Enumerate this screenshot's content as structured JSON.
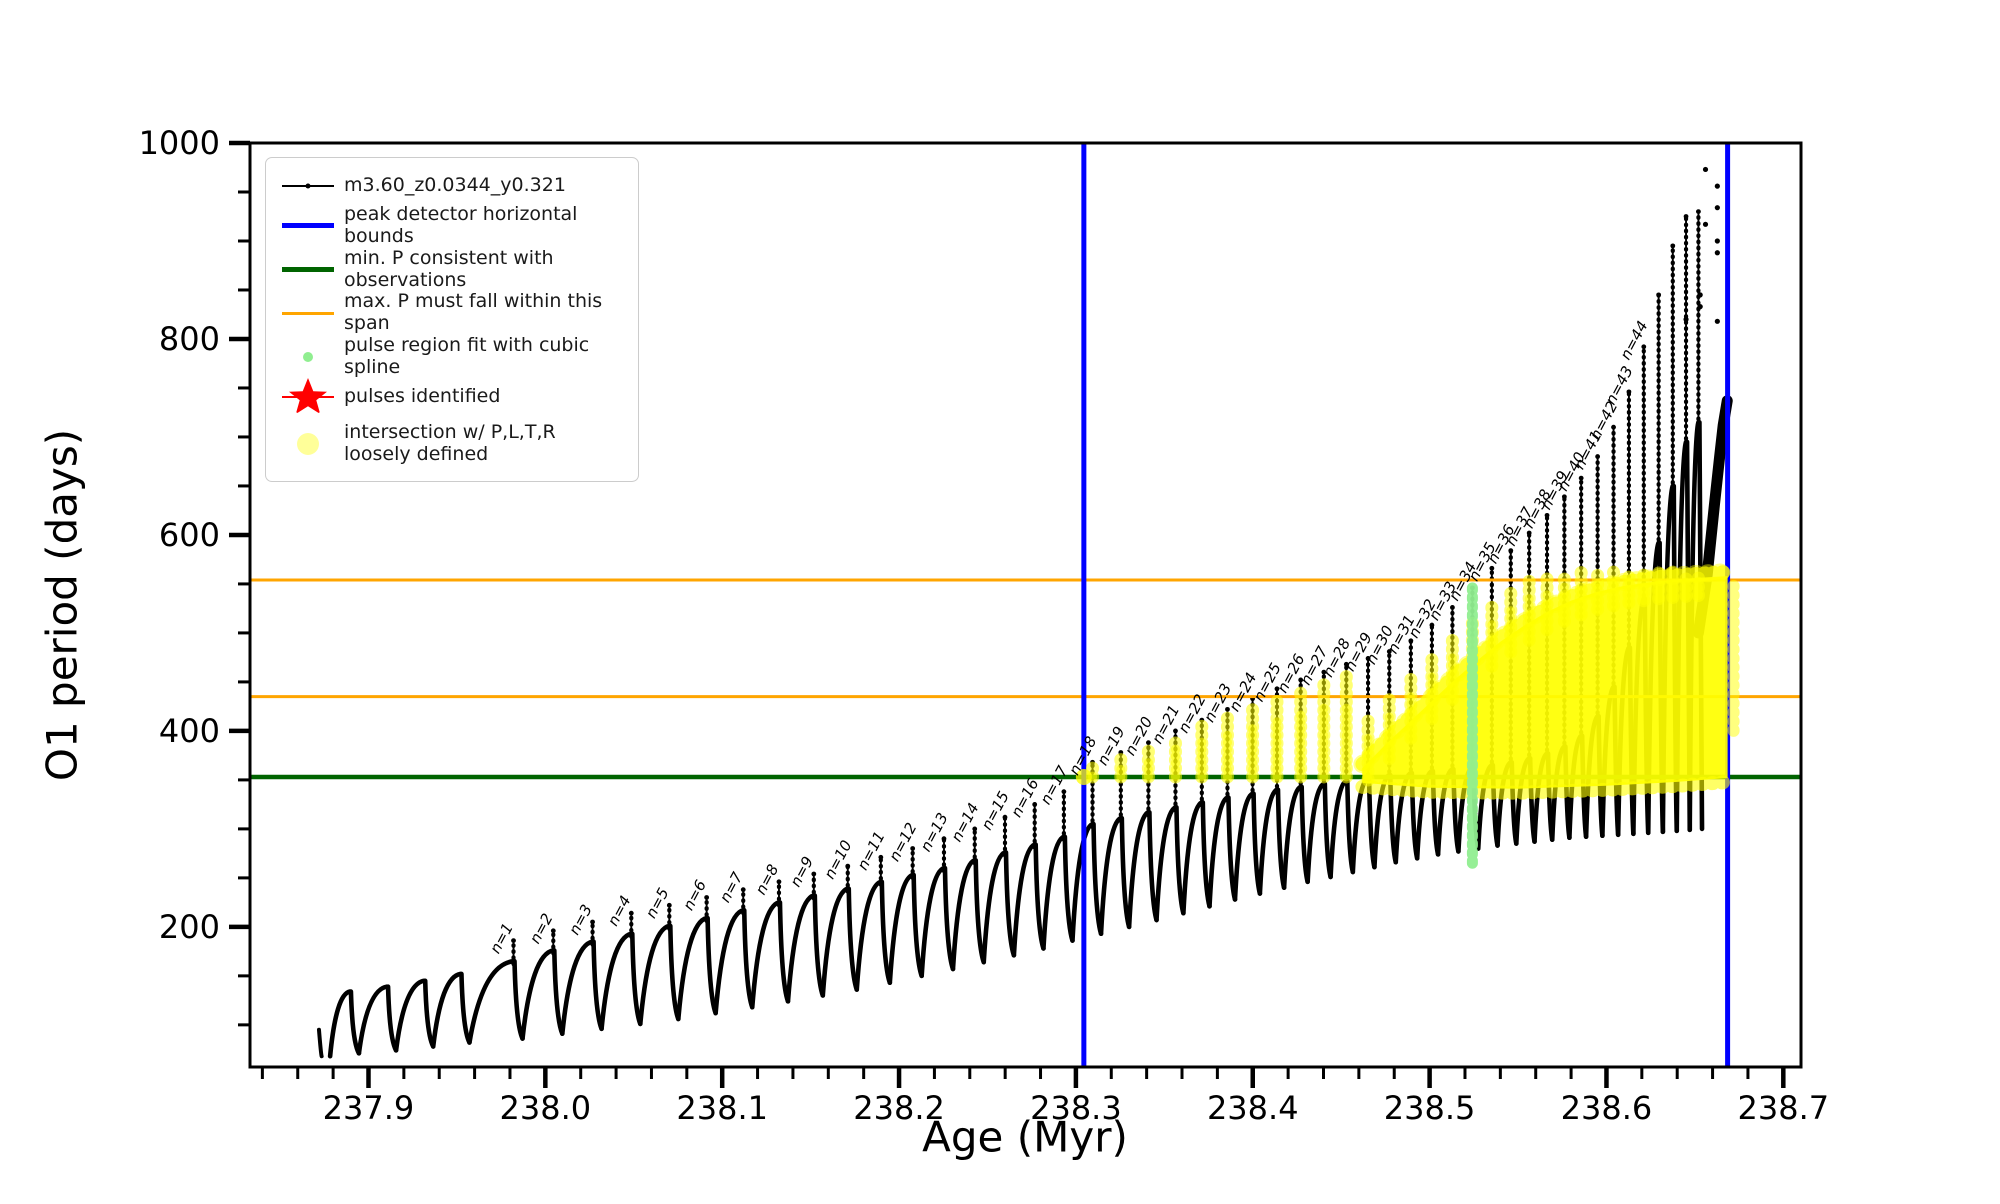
{
  "figure": {
    "background": "#ffffff",
    "xlabel": "Age (Myr)",
    "ylabel": "O1 period (days)"
  },
  "legend": {
    "items": [
      {
        "key": "track",
        "label": "m3.60_z0.0344_y0.321",
        "color": "#000000",
        "glyph": "line-with-dot"
      },
      {
        "key": "peak-bounds",
        "label": "peak detector horizontal bounds",
        "color": "#0000ff",
        "glyph": "thick-line"
      },
      {
        "key": "min-p",
        "label": "min. P consistent with observations",
        "color": "#006400",
        "glyph": "thick-line"
      },
      {
        "key": "max-p",
        "label": "max. P must fall within this span",
        "color": "#ffa500",
        "glyph": "line"
      },
      {
        "key": "pulse-fit",
        "label": "pulse region fit with cubic spline",
        "color": "#90ee90",
        "glyph": "small-dot"
      },
      {
        "key": "pulses",
        "label": "pulses identified",
        "color": "#ff0000",
        "glyph": "star-on-line"
      },
      {
        "key": "intersection",
        "label": "intersection w/ P,L,T,R\nloosely defined",
        "color": "#ffff00",
        "glyph": "big-pale-dot"
      }
    ]
  },
  "chart_data": {
    "type": "line",
    "title": "",
    "xlabel": "Age (Myr)",
    "ylabel": "O1 period (days)",
    "xlim": [
      237.833,
      238.71
    ],
    "ylim": [
      57,
      1000
    ],
    "xticks": {
      "values": [
        237.9,
        238.0,
        238.1,
        238.2,
        238.3,
        238.4,
        238.5,
        238.6,
        238.7
      ],
      "labels": [
        "237.9",
        "238.0",
        "238.1",
        "238.2",
        "238.3",
        "238.4",
        "238.5",
        "238.6",
        "238.7"
      ],
      "minor_step": 0.02
    },
    "yticks": {
      "values": [
        200,
        400,
        600,
        800,
        1000
      ],
      "labels": [
        "200",
        "400",
        "600",
        "800",
        "1000"
      ],
      "minor_step": 50
    },
    "grid": false,
    "legend_position": "upper left",
    "series_label": "m3.60_z0.0344_y0.321",
    "colors": {
      "track": "#000000",
      "peak_bounds": "#0000ff",
      "min_p": "#006400",
      "max_p": "#ffa500",
      "pulse_fit": "#90ee90",
      "pulses": "#ff0000",
      "intersection": "#ffff00"
    },
    "vlines_peak_detector": [
      238.3045,
      238.6685
    ],
    "hline_min_p": 353,
    "hlines_max_p_span": [
      435,
      554
    ],
    "track_start": {
      "x": 237.872,
      "y": 95
    },
    "teeth_columns": [
      "n_label",
      "x",
      "valley",
      "hump_peak",
      "spike_top"
    ],
    "teeth": [
      [
        null,
        237.8895,
        68,
        134,
        null
      ],
      [
        null,
        237.9105,
        71,
        139,
        null
      ],
      [
        null,
        237.9315,
        74,
        145,
        null
      ],
      [
        null,
        237.952,
        78,
        152,
        null
      ],
      [
        "n=1",
        237.982,
        82,
        165,
        186
      ],
      [
        "n=2",
        238.0045,
        86,
        176,
        196
      ],
      [
        "n=3",
        238.0267,
        91,
        185,
        205
      ],
      [
        "n=4",
        238.0486,
        96,
        193,
        214
      ],
      [
        "n=5",
        238.0701,
        101,
        201,
        222
      ],
      [
        "n=6",
        238.0912,
        106,
        209,
        230
      ],
      [
        "n=7",
        238.1119,
        112,
        217,
        238
      ],
      [
        "n=8",
        238.1321,
        118,
        225,
        246
      ],
      [
        "n=9",
        238.1518,
        124,
        232,
        254
      ],
      [
        "n=10",
        238.171,
        130,
        239,
        262
      ],
      [
        "n=11",
        238.1897,
        136,
        246,
        271
      ],
      [
        "n=12",
        238.2077,
        143,
        253,
        280
      ],
      [
        "n=13",
        238.2254,
        150,
        260,
        290
      ],
      [
        "n=14",
        238.2428,
        157,
        268,
        300
      ],
      [
        "n=15",
        238.2599,
        164,
        276,
        312
      ],
      [
        "n=16",
        238.2767,
        171,
        284,
        325
      ],
      [
        "n=17",
        238.2932,
        178,
        292,
        338
      ],
      [
        "n=18",
        238.3094,
        186,
        305,
        368
      ],
      [
        "n=19",
        238.3254,
        193,
        311,
        378
      ],
      [
        "n=20",
        238.341,
        200,
        317,
        388
      ],
      [
        "n=21",
        238.3563,
        207,
        322,
        400
      ],
      [
        "n=22",
        238.3712,
        214,
        327,
        411
      ],
      [
        "n=23",
        238.3857,
        221,
        332,
        422
      ],
      [
        "n=24",
        238.3999,
        228,
        336,
        433
      ],
      [
        "n=25",
        238.4137,
        234,
        340,
        443
      ],
      [
        "n=26",
        238.4271,
        240,
        343,
        452
      ],
      [
        "n=27",
        238.4402,
        246,
        346,
        460
      ],
      [
        "n=28",
        238.4529,
        251,
        349,
        468
      ],
      [
        "n=29",
        238.4652,
        256,
        352,
        474
      ],
      [
        "n=30",
        238.4772,
        261,
        355,
        481
      ],
      [
        "n=31",
        238.4894,
        266,
        357,
        492
      ],
      [
        "n=32",
        238.5013,
        270,
        359,
        508
      ],
      [
        "n=33",
        238.5129,
        274,
        361,
        526
      ],
      [
        "n=34",
        238.5242,
        277,
        363,
        546
      ],
      [
        "n=35",
        238.5352,
        280,
        365,
        566
      ],
      [
        "n=36",
        238.5459,
        283,
        368,
        584
      ],
      [
        "n=37",
        238.5563,
        285,
        372,
        602
      ],
      [
        "n=38",
        238.5664,
        287,
        377,
        620
      ],
      [
        "n=39",
        238.5762,
        289,
        384,
        639
      ],
      [
        "n=40",
        238.5857,
        291,
        395,
        658
      ],
      [
        "n=41",
        238.595,
        292,
        415,
        680
      ],
      [
        "n=42",
        238.604,
        293,
        445,
        710
      ],
      [
        "n=43",
        238.6127,
        294,
        485,
        746
      ],
      [
        "n=44",
        238.6211,
        295,
        535,
        792
      ],
      [
        null,
        238.6295,
        296,
        592,
        845
      ],
      [
        null,
        238.6375,
        297,
        650,
        895
      ],
      [
        null,
        238.645,
        298,
        695,
        925
      ],
      [
        null,
        238.652,
        299,
        715,
        930
      ]
    ],
    "final_envelope": [
      [
        238.652,
        500
      ],
      [
        238.657,
        560
      ],
      [
        238.661,
        630
      ],
      [
        238.664,
        680
      ],
      [
        238.666,
        712
      ],
      [
        238.6683,
        737
      ]
    ],
    "stray_points": [
      [
        238.656,
        973
      ],
      [
        238.6627,
        956
      ],
      [
        238.6627,
        934
      ],
      [
        238.656,
        917
      ],
      [
        238.6627,
        900
      ],
      [
        238.6627,
        888
      ],
      [
        238.653,
        845
      ],
      [
        238.653,
        833
      ],
      [
        238.6627,
        818
      ],
      [
        238.645,
        820
      ]
    ],
    "pulse_region_fit": {
      "x": 238.5242,
      "y_min": 265,
      "y_max": 546,
      "dot_step": 9
    },
    "intersection_region": {
      "x_start": 238.462,
      "x_end": 238.6685,
      "top_profile": [
        [
          238.462,
          362
        ],
        [
          238.475,
          386
        ],
        [
          238.488,
          408
        ],
        [
          238.501,
          430
        ],
        [
          238.514,
          452
        ],
        [
          238.527,
          472
        ],
        [
          238.54,
          491
        ],
        [
          238.553,
          507
        ],
        [
          238.566,
          521
        ],
        [
          238.58,
          533
        ],
        [
          238.595,
          542
        ],
        [
          238.61,
          548
        ],
        [
          238.63,
          553
        ],
        [
          238.65,
          556
        ],
        [
          238.6685,
          558
        ]
      ],
      "bottom_profile": [
        [
          238.462,
          347
        ],
        [
          238.5,
          342
        ],
        [
          238.55,
          341
        ],
        [
          238.6,
          344
        ],
        [
          238.64,
          348
        ],
        [
          238.6685,
          352
        ]
      ],
      "column_base": 353,
      "column_first_n": 18,
      "single_dot": [
        238.3045,
        353
      ]
    }
  }
}
